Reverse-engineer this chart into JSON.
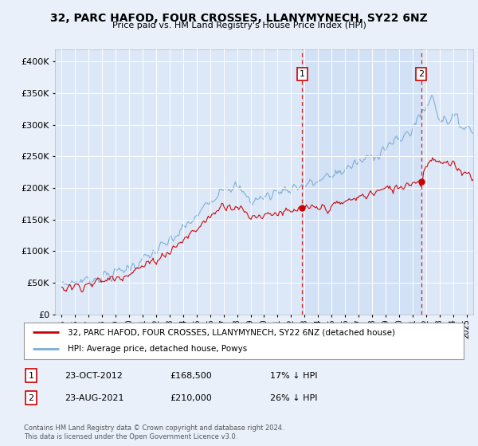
{
  "title": "32, PARC HAFOD, FOUR CROSSES, LLANYMYNECH, SY22 6NZ",
  "subtitle": "Price paid vs. HM Land Registry's House Price Index (HPI)",
  "background_color": "#eaf0fa",
  "plot_bg_color": "#dce8f8",
  "highlight_bg_color": "#ccddf5",
  "legend_line1": "32, PARC HAFOD, FOUR CROSSES, LLANYMYNECH, SY22 6NZ (detached house)",
  "legend_line2": "HPI: Average price, detached house, Powys",
  "annotation1_date": "23-OCT-2012",
  "annotation1_price": "£168,500",
  "annotation1_pct": "17% ↓ HPI",
  "annotation2_date": "23-AUG-2021",
  "annotation2_price": "£210,000",
  "annotation2_pct": "26% ↓ HPI",
  "footnote": "Contains HM Land Registry data © Crown copyright and database right 2024.\nThis data is licensed under the Open Government Licence v3.0.",
  "ylim": [
    0,
    420000
  ],
  "yticks": [
    0,
    50000,
    100000,
    150000,
    200000,
    250000,
    300000,
    350000,
    400000
  ],
  "vline1_x": 2012.82,
  "vline2_x": 2021.65,
  "marker1_y": 168500,
  "marker2_y": 210000,
  "red_color": "#cc0000",
  "blue_color": "#7aadd4",
  "xlim_left": 1994.5,
  "xlim_right": 2025.5
}
